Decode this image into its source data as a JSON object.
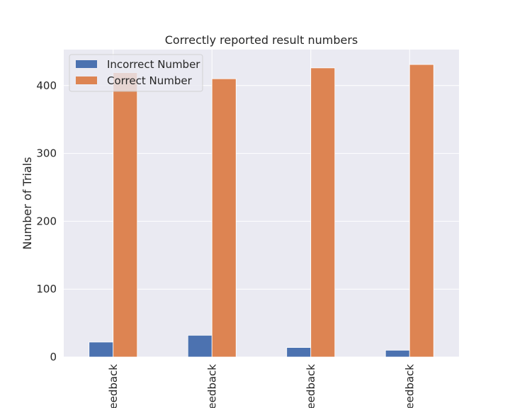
{
  "chart_data": {
    "type": "bar",
    "title": "Correctly reported result numbers",
    "xlabel": "",
    "ylabel": "Number of Trials",
    "categories": [
      "eedback",
      "eedback",
      "eedback",
      "eedback"
    ],
    "series": [
      {
        "name": "Incorrect Number",
        "values": [
          22,
          32,
          14,
          10
        ],
        "color": "#4c72b0"
      },
      {
        "name": "Correct Number",
        "values": [
          419,
          410,
          426,
          431
        ],
        "color": "#dd8452"
      }
    ],
    "ylim": [
      0,
      453
    ],
    "yticks": [
      0,
      100,
      200,
      300,
      400
    ],
    "grid": true,
    "legend_position": "upper-left",
    "background_color": "#eaeaf2",
    "grid_color": "#ffffff"
  }
}
